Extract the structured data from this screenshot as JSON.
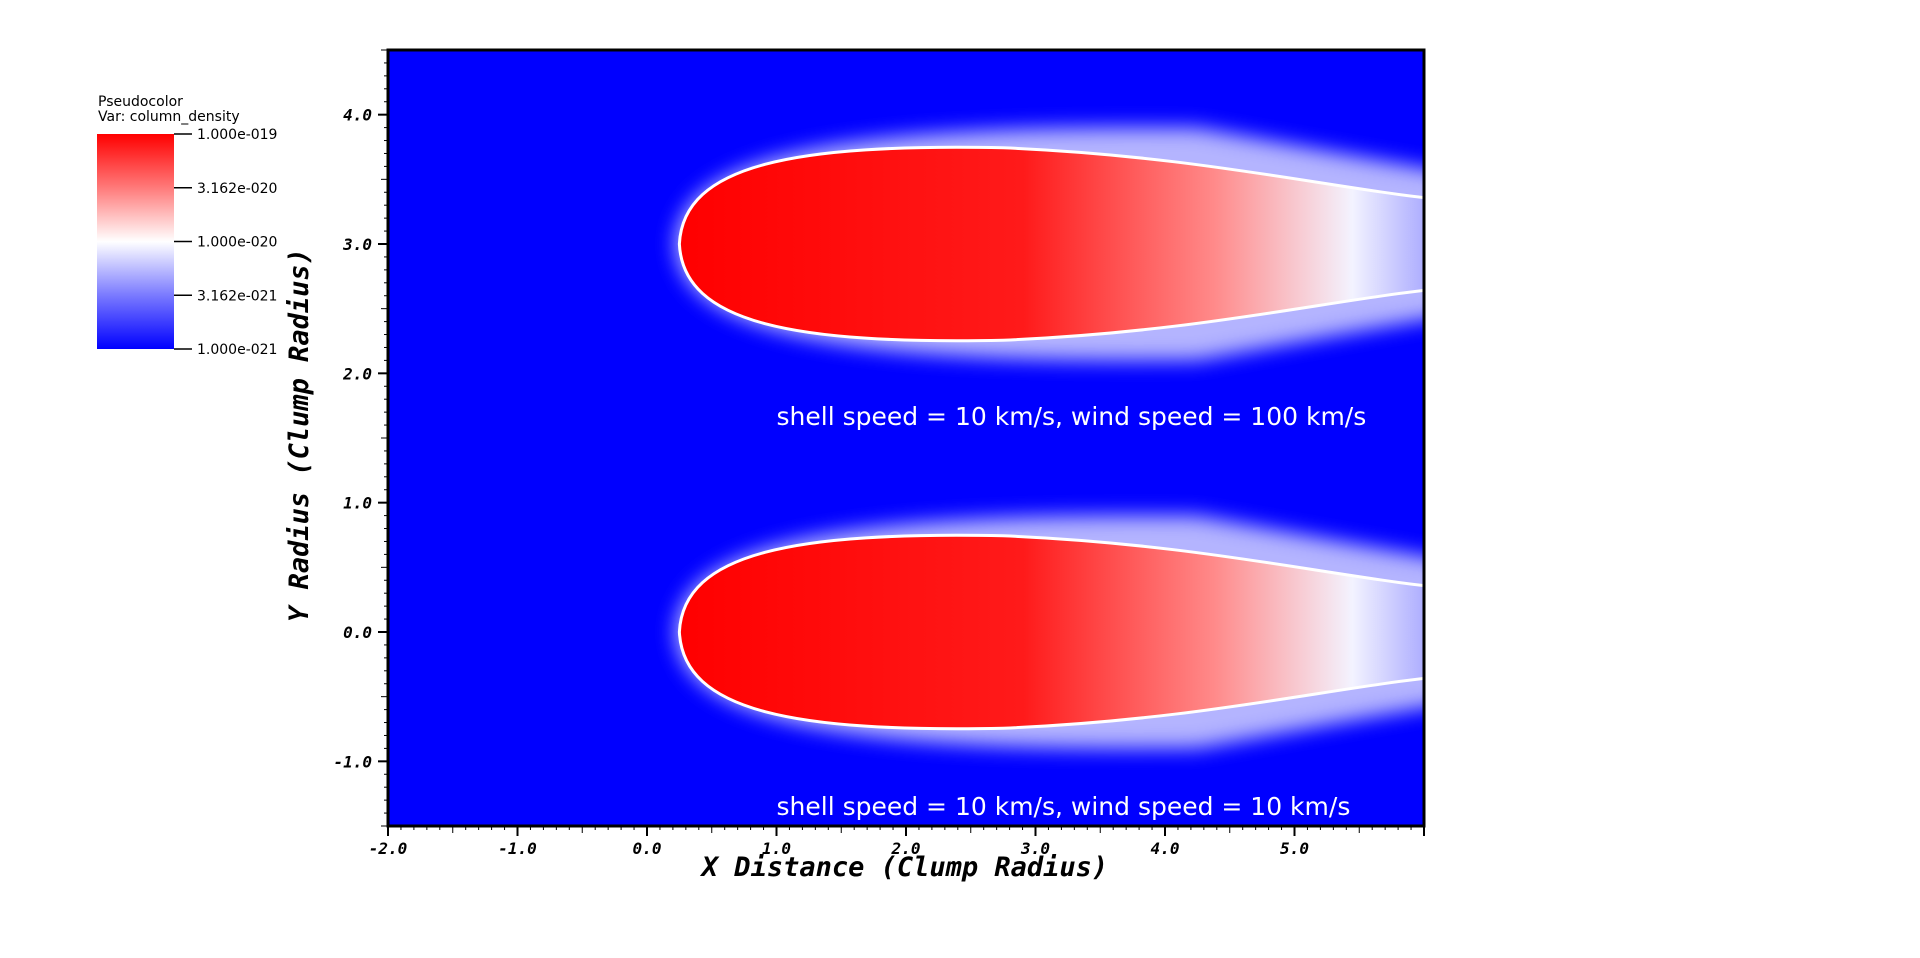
{
  "legend": {
    "title": "Pseudocolor",
    "variable": "Var: column_density",
    "ticks": [
      "1.000e-019",
      "3.162e-020",
      "1.000e-020",
      "3.162e-021",
      "1.000e-021"
    ],
    "colors": {
      "max": "#ff0000",
      "mid": "#ffffff",
      "min": "#0000ff"
    }
  },
  "chart_data": {
    "type": "heatmap",
    "xlabel": "X Distance (Clump Radius)",
    "ylabel": "Y Radius (Clump Radius)",
    "xlim": [
      -2.0,
      6.0
    ],
    "ylim": [
      -1.5,
      4.5
    ],
    "xticks": [
      "-2.0",
      "-1.0",
      "0.0",
      "1.0",
      "2.0",
      "3.0",
      "4.0",
      "5.0"
    ],
    "yticks": [
      "-1.0",
      "0.0",
      "1.0",
      "2.0",
      "3.0",
      "4.0"
    ],
    "background_color": "#0000ff",
    "colormap": [
      "#0000ff",
      "#ffffff",
      "#ff0000"
    ],
    "color_scale": "log",
    "color_range": [
      1e-21,
      1e-19
    ],
    "clumps": [
      {
        "head_x": 0.25,
        "center_y": 3.0,
        "label": "shell speed = 10 km/s, wind speed = 100 km/s"
      },
      {
        "head_x": 0.25,
        "center_y": 0.0,
        "label": "shell speed = 10 km/s, wind speed = 10 km/s"
      }
    ]
  }
}
